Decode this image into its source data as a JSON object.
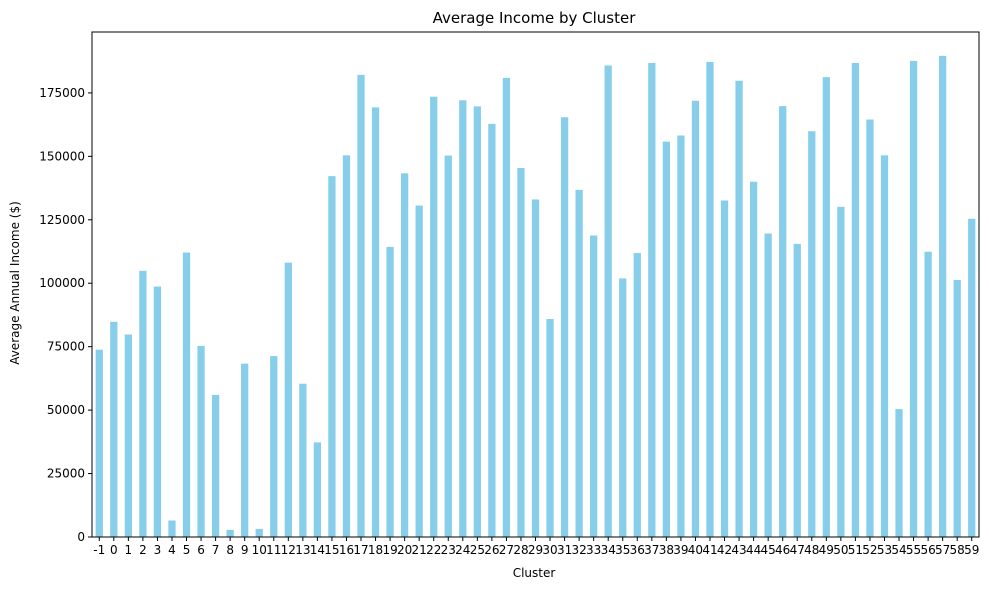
{
  "chart_data": {
    "type": "bar",
    "title": "Average Income by Cluster",
    "xlabel": "Cluster",
    "ylabel": "Average Annual Income ($)",
    "bar_color": "#87ceeb",
    "ylim": [
      0,
      199000
    ],
    "yticks": [
      0,
      25000,
      50000,
      75000,
      100000,
      125000,
      150000,
      175000
    ],
    "categories": [
      "-1",
      "0",
      "1",
      "2",
      "3",
      "4",
      "5",
      "6",
      "7",
      "8",
      "9",
      "10",
      "11",
      "12",
      "13",
      "14",
      "15",
      "16",
      "17",
      "18",
      "19",
      "20",
      "21",
      "22",
      "23",
      "24",
      "25",
      "26",
      "27",
      "28",
      "29",
      "30",
      "31",
      "32",
      "33",
      "34",
      "35",
      "36",
      "37",
      "38",
      "39",
      "40",
      "41",
      "42",
      "43",
      "44",
      "45",
      "46",
      "47",
      "48",
      "49",
      "50",
      "51",
      "52",
      "53",
      "54",
      "55",
      "56",
      "57",
      "58",
      "59"
    ],
    "values": [
      73800,
      84800,
      79800,
      104900,
      98700,
      6500,
      112100,
      75300,
      56000,
      2800,
      68300,
      3200,
      71300,
      108100,
      60400,
      37300,
      142200,
      150400,
      182100,
      169300,
      114300,
      143300,
      130600,
      173500,
      150300,
      172100,
      169700,
      162800,
      180900,
      145400,
      133000,
      85900,
      165400,
      136800,
      118800,
      185800,
      101900,
      111900,
      186800,
      155800,
      158200,
      171900,
      187200,
      132600,
      179800,
      140000,
      119600,
      169800,
      115500,
      159900,
      181200,
      130100,
      186800,
      164500,
      150400,
      50400,
      187600,
      112400,
      189600,
      101300,
      125400
    ]
  }
}
